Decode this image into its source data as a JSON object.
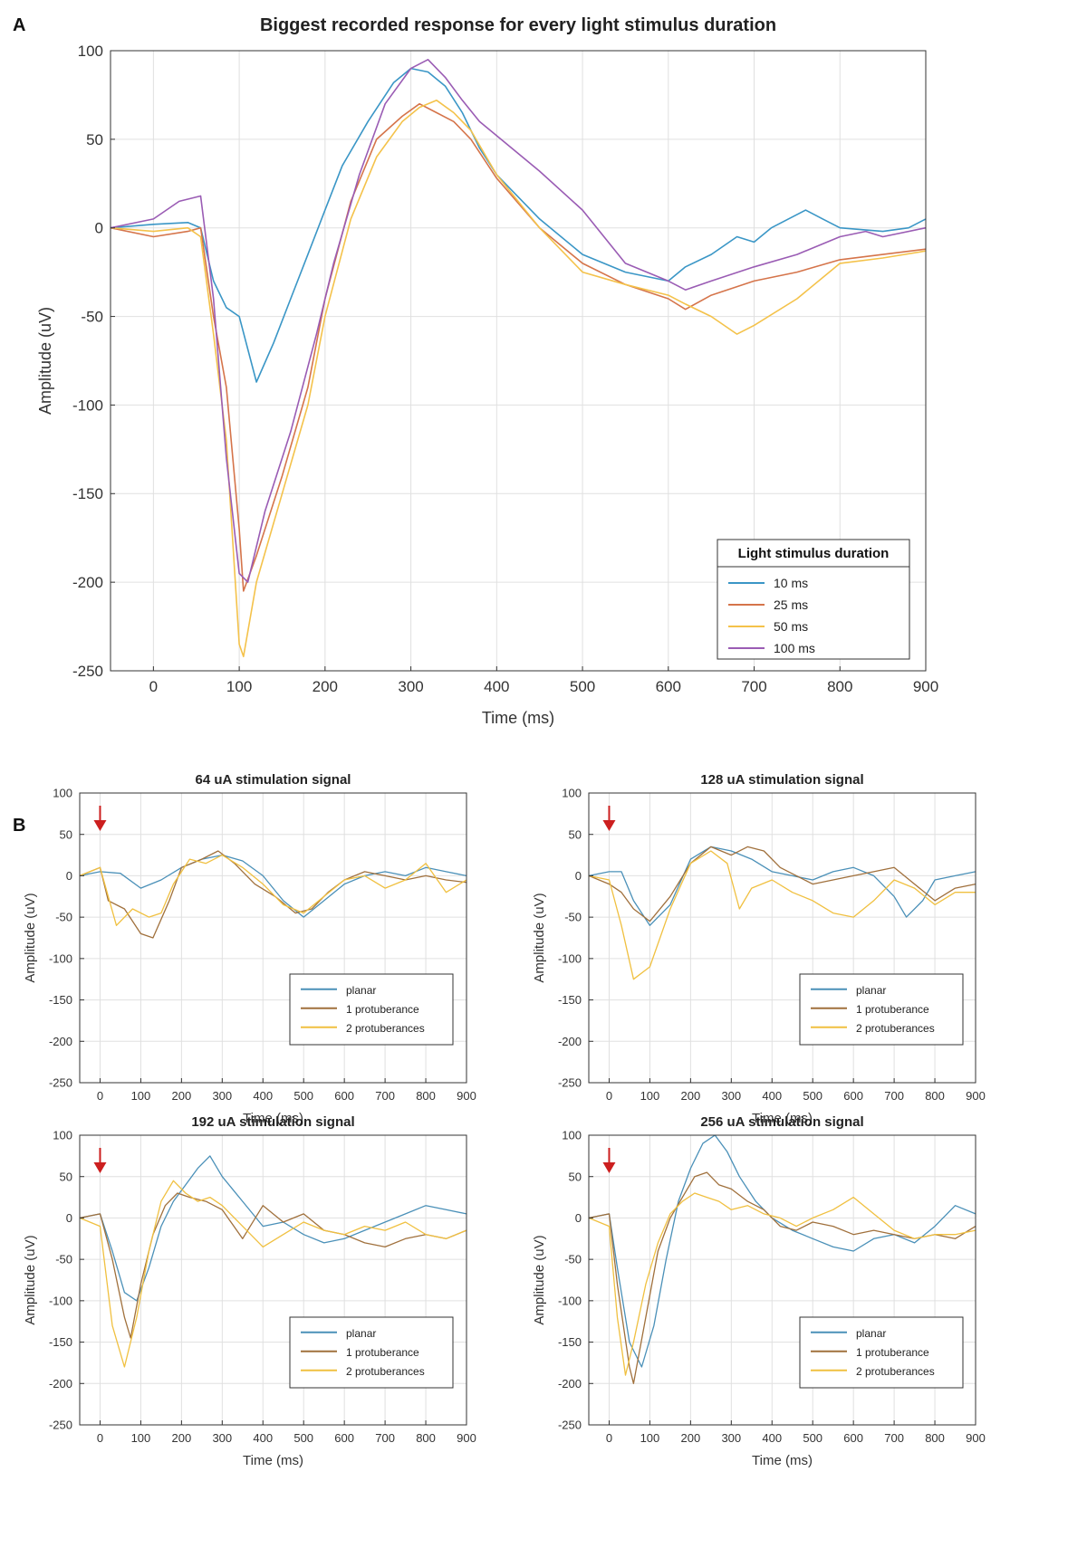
{
  "panel_labels": {
    "a": "A",
    "b": "B"
  },
  "colors": {
    "planar": "#4a90b8",
    "one_protuberance": "#a0703c",
    "two_protuberances": "#f0c040",
    "d10": "#3a96c6",
    "d25": "#d5744a",
    "d50": "#f4c24a",
    "d100": "#9a5cb4",
    "arrow": "#cc1f1f"
  },
  "chart_data": [
    {
      "id": "A",
      "type": "line",
      "title": "Biggest recorded response for every light stimulus duration",
      "xlabel": "Time (ms)",
      "ylabel": "Amplitude (uV)",
      "xlim": [
        -50,
        900
      ],
      "ylim": [
        -250,
        100
      ],
      "xticks": [
        0,
        100,
        200,
        300,
        400,
        500,
        600,
        700,
        800,
        900
      ],
      "yticks": [
        100,
        50,
        0,
        -50,
        -100,
        -150,
        -200,
        -250
      ],
      "grid": true,
      "legend_title": "Light stimulus duration",
      "legend_position": "bottom-right",
      "series": [
        {
          "name": "10 ms",
          "color": "#3a96c6",
          "x": [
            -50,
            0,
            40,
            55,
            70,
            85,
            100,
            120,
            140,
            160,
            180,
            200,
            220,
            250,
            280,
            300,
            320,
            340,
            360,
            380,
            400,
            450,
            500,
            550,
            600,
            620,
            650,
            680,
            700,
            720,
            760,
            780,
            800,
            850,
            880,
            900
          ],
          "y": [
            0,
            2,
            3,
            0,
            -30,
            -45,
            -50,
            -87,
            -65,
            -40,
            -15,
            10,
            35,
            60,
            82,
            90,
            88,
            80,
            65,
            45,
            30,
            5,
            -15,
            -25,
            -30,
            -22,
            -15,
            -5,
            -8,
            0,
            10,
            5,
            0,
            -2,
            0,
            5
          ]
        },
        {
          "name": "25 ms",
          "color": "#d5744a",
          "x": [
            -50,
            0,
            40,
            55,
            70,
            85,
            100,
            105,
            120,
            150,
            180,
            200,
            230,
            260,
            290,
            310,
            330,
            350,
            370,
            400,
            450,
            500,
            550,
            600,
            620,
            650,
            700,
            750,
            800,
            850,
            900
          ],
          "y": [
            0,
            -5,
            -2,
            0,
            -50,
            -90,
            -170,
            -205,
            -185,
            -140,
            -90,
            -40,
            15,
            50,
            63,
            70,
            65,
            60,
            50,
            28,
            0,
            -20,
            -32,
            -40,
            -46,
            -38,
            -30,
            -25,
            -18,
            -15,
            -12
          ]
        },
        {
          "name": "50 ms",
          "color": "#f4c24a",
          "x": [
            -50,
            0,
            40,
            55,
            70,
            85,
            100,
            105,
            120,
            150,
            180,
            200,
            230,
            260,
            290,
            310,
            330,
            350,
            370,
            400,
            450,
            500,
            550,
            600,
            620,
            650,
            680,
            700,
            750,
            800,
            850,
            900
          ],
          "y": [
            0,
            -2,
            0,
            -5,
            -60,
            -120,
            -235,
            -242,
            -200,
            -150,
            -100,
            -50,
            5,
            40,
            60,
            68,
            72,
            65,
            55,
            30,
            0,
            -25,
            -32,
            -38,
            -43,
            -50,
            -60,
            -55,
            -40,
            -20,
            -17,
            -13
          ]
        },
        {
          "name": "100 ms",
          "color": "#9a5cb4",
          "x": [
            -50,
            0,
            30,
            55,
            70,
            85,
            100,
            110,
            130,
            160,
            190,
            210,
            240,
            270,
            300,
            320,
            340,
            360,
            380,
            400,
            450,
            500,
            550,
            600,
            620,
            650,
            700,
            750,
            800,
            830,
            850,
            900
          ],
          "y": [
            0,
            5,
            15,
            18,
            -40,
            -130,
            -195,
            -200,
            -160,
            -115,
            -60,
            -20,
            30,
            70,
            90,
            95,
            85,
            72,
            60,
            52,
            32,
            10,
            -20,
            -30,
            -35,
            -30,
            -22,
            -15,
            -5,
            -2,
            -5,
            0
          ]
        }
      ]
    },
    {
      "id": "B1",
      "type": "line",
      "title": "64 uA stimulation signal",
      "xlabel": "Time (ms)",
      "ylabel": "Amplitude (uV)",
      "xlim": [
        -50,
        900
      ],
      "ylim": [
        -250,
        100
      ],
      "xticks": [
        0,
        100,
        200,
        300,
        400,
        500,
        600,
        700,
        800,
        900
      ],
      "yticks": [
        100,
        50,
        0,
        -50,
        -100,
        -150,
        -200,
        -250
      ],
      "grid": true,
      "legend_position": "bottom-right",
      "series": [
        {
          "name": "planar",
          "color": "#4a90b8",
          "x": [
            -50,
            0,
            50,
            100,
            150,
            200,
            250,
            300,
            350,
            400,
            450,
            500,
            550,
            600,
            650,
            700,
            750,
            800,
            850,
            900
          ],
          "y": [
            0,
            5,
            3,
            -15,
            -5,
            10,
            20,
            25,
            18,
            0,
            -30,
            -50,
            -30,
            -10,
            0,
            5,
            0,
            10,
            5,
            0
          ]
        },
        {
          "name": "1 protuberance",
          "color": "#a0703c",
          "x": [
            -50,
            0,
            20,
            60,
            100,
            130,
            170,
            200,
            250,
            290,
            330,
            380,
            430,
            480,
            520,
            560,
            600,
            650,
            700,
            750,
            800,
            850,
            900
          ],
          "y": [
            0,
            10,
            -30,
            -40,
            -70,
            -75,
            -30,
            10,
            20,
            30,
            15,
            -10,
            -25,
            -45,
            -40,
            -20,
            -5,
            5,
            0,
            -5,
            0,
            -5,
            -8
          ]
        },
        {
          "name": "2 protuberances",
          "color": "#f0c040",
          "x": [
            -50,
            0,
            40,
            80,
            120,
            150,
            180,
            220,
            260,
            300,
            350,
            400,
            450,
            500,
            550,
            600,
            650,
            700,
            750,
            800,
            850,
            900
          ],
          "y": [
            0,
            10,
            -60,
            -40,
            -50,
            -45,
            -10,
            20,
            15,
            25,
            10,
            -10,
            -35,
            -45,
            -25,
            -5,
            0,
            -15,
            -5,
            15,
            -20,
            -5
          ]
        }
      ]
    },
    {
      "id": "B2",
      "type": "line",
      "title": "128 uA stimulation signal",
      "xlabel": "Time (ms)",
      "ylabel": "Amplitude (uV)",
      "xlim": [
        -50,
        900
      ],
      "ylim": [
        -250,
        100
      ],
      "xticks": [
        0,
        100,
        200,
        300,
        400,
        500,
        600,
        700,
        800,
        900
      ],
      "yticks": [
        100,
        50,
        0,
        -50,
        -100,
        -150,
        -200,
        -250
      ],
      "grid": true,
      "legend_position": "bottom-right",
      "series": [
        {
          "name": "planar",
          "color": "#4a90b8",
          "x": [
            -50,
            0,
            30,
            60,
            100,
            150,
            200,
            250,
            300,
            350,
            400,
            450,
            500,
            550,
            600,
            650,
            700,
            730,
            770,
            800,
            850,
            900
          ],
          "y": [
            0,
            5,
            5,
            -30,
            -60,
            -35,
            20,
            35,
            30,
            20,
            5,
            0,
            -5,
            5,
            10,
            0,
            -25,
            -50,
            -30,
            -5,
            0,
            5
          ]
        },
        {
          "name": "1 protuberance",
          "color": "#a0703c",
          "x": [
            -50,
            0,
            30,
            60,
            100,
            150,
            200,
            250,
            300,
            340,
            380,
            420,
            460,
            500,
            550,
            600,
            650,
            700,
            750,
            800,
            850,
            900
          ],
          "y": [
            0,
            -10,
            -20,
            -40,
            -55,
            -25,
            15,
            35,
            25,
            35,
            30,
            10,
            0,
            -10,
            -5,
            0,
            5,
            10,
            -10,
            -30,
            -15,
            -10
          ]
        },
        {
          "name": "2 protuberances",
          "color": "#f0c040",
          "x": [
            -50,
            0,
            30,
            60,
            100,
            150,
            200,
            250,
            290,
            320,
            350,
            400,
            450,
            500,
            550,
            600,
            650,
            700,
            750,
            800,
            850,
            900
          ],
          "y": [
            0,
            -5,
            -60,
            -125,
            -110,
            -40,
            15,
            30,
            15,
            -40,
            -15,
            -5,
            -20,
            -30,
            -45,
            -50,
            -30,
            -5,
            -15,
            -35,
            -20,
            -20
          ]
        }
      ]
    },
    {
      "id": "B3",
      "type": "line",
      "title": "192 uA stimulation signal",
      "xlabel": "Time (ms)",
      "ylabel": "Amplitude (uV)",
      "xlim": [
        -50,
        900
      ],
      "ylim": [
        -250,
        100
      ],
      "xticks": [
        0,
        100,
        200,
        300,
        400,
        500,
        600,
        700,
        800,
        900
      ],
      "yticks": [
        100,
        50,
        0,
        -50,
        -100,
        -150,
        -200,
        -250
      ],
      "grid": true,
      "legend_position": "bottom-right",
      "series": [
        {
          "name": "planar",
          "color": "#4a90b8",
          "x": [
            -50,
            0,
            30,
            60,
            90,
            120,
            150,
            180,
            210,
            240,
            270,
            300,
            350,
            400,
            450,
            500,
            550,
            600,
            650,
            700,
            750,
            800,
            850,
            900
          ],
          "y": [
            0,
            5,
            -40,
            -90,
            -100,
            -60,
            -10,
            20,
            40,
            60,
            75,
            50,
            20,
            -10,
            -5,
            -20,
            -30,
            -25,
            -15,
            -5,
            5,
            15,
            10,
            5
          ]
        },
        {
          "name": "1 protuberance",
          "color": "#a0703c",
          "x": [
            -50,
            0,
            30,
            60,
            75,
            100,
            130,
            160,
            190,
            220,
            260,
            300,
            350,
            400,
            450,
            500,
            550,
            600,
            650,
            700,
            750,
            800,
            850,
            900
          ],
          "y": [
            0,
            5,
            -50,
            -120,
            -145,
            -80,
            -20,
            15,
            30,
            25,
            20,
            10,
            -25,
            15,
            -5,
            5,
            -15,
            -20,
            -30,
            -35,
            -25,
            -20,
            -25,
            -15
          ]
        },
        {
          "name": "2 protuberances",
          "color": "#f0c040",
          "x": [
            -50,
            0,
            30,
            60,
            90,
            120,
            150,
            180,
            210,
            240,
            270,
            300,
            350,
            400,
            450,
            500,
            550,
            600,
            650,
            700,
            750,
            800,
            850,
            900
          ],
          "y": [
            0,
            -10,
            -130,
            -180,
            -120,
            -40,
            20,
            45,
            30,
            20,
            25,
            15,
            -10,
            -35,
            -20,
            -5,
            -15,
            -20,
            -10,
            -15,
            -5,
            -20,
            -25,
            -15
          ]
        }
      ]
    },
    {
      "id": "B4",
      "type": "line",
      "title": "256 uA stimulation signal",
      "xlabel": "Time (ms)",
      "ylabel": "Amplitude (uV)",
      "xlim": [
        -50,
        900
      ],
      "ylim": [
        -250,
        100
      ],
      "xticks": [
        0,
        100,
        200,
        300,
        400,
        500,
        600,
        700,
        800,
        900
      ],
      "yticks": [
        100,
        50,
        0,
        -50,
        -100,
        -150,
        -200,
        -250
      ],
      "grid": true,
      "legend_position": "bottom-right",
      "series": [
        {
          "name": "planar",
          "color": "#4a90b8",
          "x": [
            -50,
            0,
            20,
            50,
            80,
            110,
            140,
            170,
            200,
            230,
            260,
            290,
            320,
            360,
            400,
            450,
            500,
            550,
            600,
            650,
            700,
            750,
            800,
            850,
            900
          ],
          "y": [
            0,
            5,
            -60,
            -150,
            -180,
            -130,
            -50,
            20,
            60,
            90,
            100,
            80,
            50,
            20,
            0,
            -15,
            -25,
            -35,
            -40,
            -25,
            -20,
            -30,
            -10,
            15,
            5
          ]
        },
        {
          "name": "1 protuberance",
          "color": "#a0703c",
          "x": [
            -50,
            0,
            20,
            50,
            60,
            90,
            120,
            150,
            180,
            210,
            240,
            270,
            300,
            340,
            380,
            420,
            460,
            500,
            550,
            600,
            650,
            700,
            750,
            800,
            850,
            900
          ],
          "y": [
            0,
            5,
            -80,
            -180,
            -200,
            -120,
            -40,
            0,
            25,
            50,
            55,
            40,
            35,
            20,
            10,
            -10,
            -15,
            -5,
            -10,
            -20,
            -15,
            -20,
            -25,
            -20,
            -25,
            -10
          ]
        },
        {
          "name": "2 protuberances",
          "color": "#f0c040",
          "x": [
            -50,
            0,
            20,
            40,
            60,
            90,
            120,
            150,
            180,
            210,
            240,
            270,
            300,
            340,
            380,
            420,
            460,
            500,
            550,
            600,
            650,
            700,
            750,
            800,
            850,
            900
          ],
          "y": [
            0,
            -10,
            -120,
            -190,
            -150,
            -80,
            -30,
            5,
            20,
            30,
            25,
            20,
            10,
            15,
            5,
            0,
            -10,
            0,
            10,
            25,
            5,
            -15,
            -25,
            -20,
            -20,
            -15
          ]
        }
      ]
    }
  ]
}
